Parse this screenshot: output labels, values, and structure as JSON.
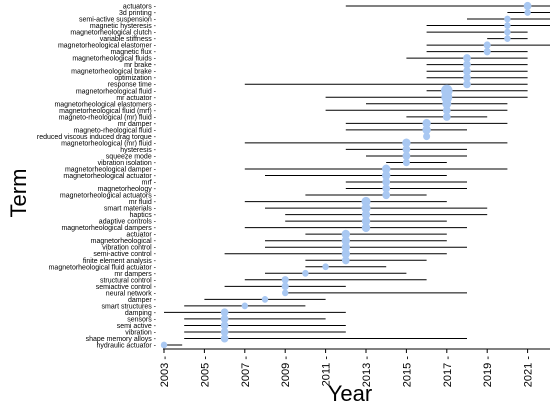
{
  "chart_data": {
    "type": "scatter",
    "title": "",
    "xlabel": "Year",
    "ylabel": "Term",
    "xlim": [
      2003,
      2022.4
    ],
    "xticks": [
      "2003",
      "2005",
      "2007",
      "2009",
      "2011",
      "2013",
      "2015",
      "2017",
      "2019",
      "2021"
    ],
    "grid": false,
    "marker_color": "#a9c8f2",
    "line_color": "#000000",
    "rows": [
      {
        "term": "actuators",
        "start": 2012,
        "end": 2022.3,
        "peak": 2021,
        "size": 1.2
      },
      {
        "term": "3d printing",
        "start": 2020,
        "end": 2022.3,
        "peak": 2021,
        "size": 1.0
      },
      {
        "term": "semi-active suspension",
        "start": 2018,
        "end": 2022.3,
        "peak": 2020,
        "size": 1.0
      },
      {
        "term": "magnetic hysteresis",
        "start": 2016,
        "end": 2022.3,
        "peak": 2020,
        "size": 1.0
      },
      {
        "term": "magnetorheological clutch",
        "start": 2016,
        "end": 2021,
        "peak": 2020,
        "size": 1.0
      },
      {
        "term": "variable stiffness",
        "start": 2019,
        "end": 2021,
        "peak": 2020,
        "size": 1.0
      },
      {
        "term": "magnetorheological elastomer",
        "start": 2016,
        "end": 2022.3,
        "peak": 2019,
        "size": 1.1
      },
      {
        "term": "magnetic flux",
        "start": 2016,
        "end": 2021,
        "peak": 2019,
        "size": 1.1
      },
      {
        "term": "magnetorheological fluids",
        "start": 2015,
        "end": 2021,
        "peak": 2018,
        "size": 1.2
      },
      {
        "term": "mr brake",
        "start": 2016,
        "end": 2021,
        "peak": 2018,
        "size": 1.2
      },
      {
        "term": "magnetorheological brake",
        "start": 2016,
        "end": 2021,
        "peak": 2018,
        "size": 1.2
      },
      {
        "term": "optimization",
        "start": 2016,
        "end": 2021,
        "peak": 2018,
        "size": 1.2
      },
      {
        "term": "response time",
        "start": 2007,
        "end": 2021,
        "peak": 2018,
        "size": 1.2
      },
      {
        "term": "magnetorheological fluid",
        "start": 2016,
        "end": 2021,
        "peak": 2017,
        "size": 1.8
      },
      {
        "term": "mr actuator",
        "start": 2011,
        "end": 2021,
        "peak": 2017,
        "size": 1.7
      },
      {
        "term": "magnetorheological elastomers",
        "start": 2013,
        "end": 2020,
        "peak": 2017,
        "size": 1.4
      },
      {
        "term": "magnetorheological fluid (mrf)",
        "start": 2011,
        "end": 2020,
        "peak": 2017,
        "size": 1.2
      },
      {
        "term": "magneto-rheological (mr) fluid",
        "start": 2015,
        "end": 2019,
        "peak": 2017,
        "size": 1.2
      },
      {
        "term": "mr damper",
        "start": 2012,
        "end": 2020,
        "peak": 2016,
        "size": 1.3
      },
      {
        "term": "magneto-rheological fluid",
        "start": 2012,
        "end": 2018,
        "peak": 2016,
        "size": 1.3
      },
      {
        "term": "reduced viscous induced drag torque",
        "start": 2016,
        "end": 2016,
        "peak": 2016,
        "size": 1.1
      },
      {
        "term": "magnetorheological (mr) fluid",
        "start": 2007,
        "end": 2020,
        "peak": 2015,
        "size": 1.3
      },
      {
        "term": "hysteresis",
        "start": 2012,
        "end": 2018,
        "peak": 2015,
        "size": 1.2
      },
      {
        "term": "squeeze mode",
        "start": 2013,
        "end": 2018,
        "peak": 2015,
        "size": 1.2
      },
      {
        "term": "vibration isolation",
        "start": 2014,
        "end": 2017,
        "peak": 2015,
        "size": 1.1
      },
      {
        "term": "magnetorheological damper",
        "start": 2007,
        "end": 2020,
        "peak": 2014,
        "size": 1.3
      },
      {
        "term": "magnetorheological actuator",
        "start": 2008,
        "end": 2017,
        "peak": 2014,
        "size": 1.3
      },
      {
        "term": "mrf",
        "start": 2012,
        "end": 2018,
        "peak": 2014,
        "size": 1.2
      },
      {
        "term": "magnetorheology",
        "start": 2012,
        "end": 2018,
        "peak": 2014,
        "size": 1.2
      },
      {
        "term": "magnetorheological actuators",
        "start": 2010,
        "end": 2016,
        "peak": 2014,
        "size": 1.2
      },
      {
        "term": "mr fluid",
        "start": 2007,
        "end": 2017,
        "peak": 2013,
        "size": 1.4
      },
      {
        "term": "smart materials",
        "start": 2008,
        "end": 2019,
        "peak": 2013,
        "size": 1.4
      },
      {
        "term": "haptics",
        "start": 2009,
        "end": 2019,
        "peak": 2013,
        "size": 1.3
      },
      {
        "term": "adaptive controls",
        "start": 2009,
        "end": 2017,
        "peak": 2013,
        "size": 1.3
      },
      {
        "term": "magnetorheological dampers",
        "start": 2007,
        "end": 2018,
        "peak": 2013,
        "size": 1.3
      },
      {
        "term": "actuator",
        "start": 2010,
        "end": 2017,
        "peak": 2012,
        "size": 1.3
      },
      {
        "term": "magnetorheological",
        "start": 2008,
        "end": 2017,
        "peak": 2012,
        "size": 1.3
      },
      {
        "term": "vibration control",
        "start": 2008,
        "end": 2018,
        "peak": 2012,
        "size": 1.3
      },
      {
        "term": "semi-active control",
        "start": 2006,
        "end": 2017,
        "peak": 2012,
        "size": 1.3
      },
      {
        "term": "finite element analysis",
        "start": 2010,
        "end": 2016,
        "peak": 2012,
        "size": 1.2
      },
      {
        "term": "magnetorheological fluid actuator",
        "start": 2010,
        "end": 2014,
        "peak": 2011,
        "size": 1.0
      },
      {
        "term": "mr dampers",
        "start": 2008,
        "end": 2015,
        "peak": 2010,
        "size": 1.0
      },
      {
        "term": "structural control",
        "start": 2007,
        "end": 2016,
        "peak": 2009,
        "size": 1.1
      },
      {
        "term": "semiactive control",
        "start": 2006,
        "end": 2012,
        "peak": 2009,
        "size": 1.1
      },
      {
        "term": "neural network",
        "start": 2009,
        "end": 2018,
        "peak": 2009,
        "size": 1.0
      },
      {
        "term": "damper",
        "start": 2005,
        "end": 2011,
        "peak": 2008,
        "size": 1.0
      },
      {
        "term": "smart structures",
        "start": 2004,
        "end": 2010,
        "peak": 2007,
        "size": 1.0
      },
      {
        "term": "damping",
        "start": 2003,
        "end": 2012,
        "peak": 2006,
        "size": 1.2
      },
      {
        "term": "sensors",
        "start": 2004,
        "end": 2011,
        "peak": 2006,
        "size": 1.2
      },
      {
        "term": "semi active",
        "start": 2004,
        "end": 2012,
        "peak": 2006,
        "size": 1.2
      },
      {
        "term": "vibration",
        "start": 2004,
        "end": 2012,
        "peak": 2006,
        "size": 1.2
      },
      {
        "term": "shape memory alloys",
        "start": 2004,
        "end": 2018,
        "peak": 2006,
        "size": 1.2
      },
      {
        "term": "hydraulic actuator",
        "start": 2003,
        "end": 2003.9,
        "peak": 2003,
        "size": 1.0
      }
    ]
  }
}
